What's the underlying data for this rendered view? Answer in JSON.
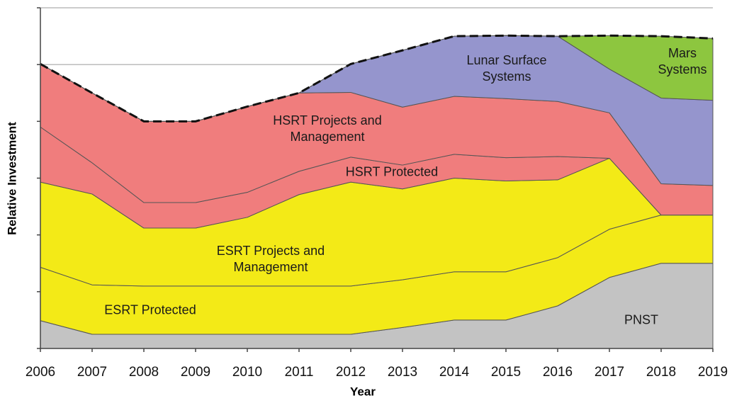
{
  "chart_data": {
    "type": "stacked-area",
    "x_label": "Year",
    "y_label": "Relative Investment",
    "x": [
      2006,
      2007,
      2008,
      2009,
      2010,
      2011,
      2012,
      2013,
      2014,
      2015,
      2016,
      2017,
      2018,
      2019
    ],
    "xlim": [
      2006,
      2019
    ],
    "xticks": [
      2006,
      2007,
      2008,
      2009,
      2010,
      2011,
      2012,
      2013,
      2014,
      2015,
      2016,
      2017,
      2018,
      2019
    ],
    "ylim": [
      0,
      6
    ],
    "yticks": [
      0,
      1,
      2,
      3,
      4,
      5,
      6
    ],
    "grid": true,
    "series": [
      {
        "name": "PNST",
        "color": "#c3c3c3",
        "values": [
          0.49,
          0.25,
          0.25,
          0.25,
          0.25,
          0.25,
          0.25,
          0.37,
          0.5,
          0.5,
          0.75,
          1.25,
          1.5,
          1.5
        ]
      },
      {
        "name": "ESRT Protected",
        "color": "#f3ea17",
        "values": [
          0.94,
          0.87,
          0.85,
          0.85,
          0.85,
          0.85,
          0.85,
          0.84,
          0.85,
          0.85,
          0.85,
          0.85,
          0.85,
          0.85
        ]
      },
      {
        "name": "ESRT Projects and Management",
        "color": "#f3ea17",
        "values": [
          1.5,
          1.6,
          1.02,
          1.02,
          1.21,
          1.61,
          1.83,
          1.6,
          1.65,
          1.6,
          1.37,
          1.25,
          0,
          0
        ]
      },
      {
        "name": "HSRT Protected",
        "color": "#f07d7d",
        "values": [
          0.97,
          0.55,
          0.45,
          0.45,
          0.44,
          0.41,
          0.44,
          0.42,
          0.42,
          0.41,
          0.41,
          0,
          0,
          0
        ]
      },
      {
        "name": "HSRT Projects and Management",
        "color": "#f07d7d",
        "values": [
          1.11,
          1.23,
          1.43,
          1.43,
          1.51,
          1.38,
          1.14,
          1.02,
          1.02,
          1.04,
          0.97,
          0.8,
          0.55,
          0.52
        ]
      },
      {
        "name": "Lunar Surface Systems",
        "color": "#9595cd",
        "values": [
          0,
          0,
          0,
          0,
          0,
          0,
          0.5,
          1.0,
          1.06,
          1.11,
          1.15,
          0.77,
          1.51,
          1.5
        ]
      },
      {
        "name": "Mars Systems",
        "color": "#8dc63f",
        "values": [
          0,
          0,
          0,
          0,
          0,
          0,
          0,
          0,
          0,
          0,
          0,
          0.59,
          1.09,
          1.09
        ]
      }
    ]
  }
}
